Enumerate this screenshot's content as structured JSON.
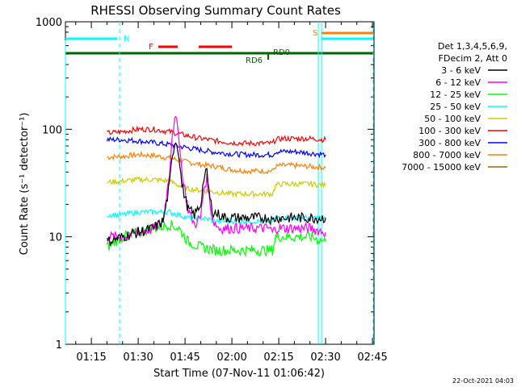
{
  "chart_data": {
    "type": "line",
    "title": "RHESSI Observing Summary Count Rates",
    "xlabel": "Start Time (07-Nov-11 01:06:42)",
    "ylabel": "Count Rate (s⁻¹ detector⁻¹)",
    "yscale": "log",
    "ylim": [
      1,
      1000
    ],
    "xlim_minutes_utc": [
      66.7,
      165.5
    ],
    "x_tick_labels": [
      "01:15",
      "01:30",
      "01:45",
      "02:00",
      "02:15",
      "02:30",
      "02:45"
    ],
    "x_tick_minutes": [
      75,
      90,
      105,
      120,
      135,
      150,
      165
    ],
    "y_tick_labels": [
      "1",
      "10",
      "100",
      "1000"
    ],
    "y_tick_values": [
      1,
      10,
      100,
      1000
    ],
    "legend": {
      "header_line1": "Det 1,3,4,5,6,9,",
      "header_line2": "FDecim 2, Att 0",
      "placement": "right"
    },
    "series": [
      {
        "name": "3 - 6 keV",
        "color": "#000000",
        "x": [
          80,
          85,
          90,
          95,
          98,
          100,
          101,
          102,
          103,
          104,
          106,
          108,
          110,
          111,
          112,
          113,
          114,
          116,
          118,
          120,
          124,
          128,
          132,
          133,
          134,
          136,
          140,
          145,
          150
        ],
        "y": [
          9,
          10,
          11,
          12,
          14,
          30,
          60,
          80,
          60,
          30,
          18,
          16,
          20,
          35,
          40,
          22,
          17,
          16,
          15,
          15,
          15,
          15,
          15,
          14,
          15,
          15,
          15,
          15,
          15
        ]
      },
      {
        "name": "6 - 12 keV",
        "color": "#ff00ff",
        "x": [
          80,
          85,
          90,
          95,
          98,
          100,
          101,
          102,
          103,
          104,
          106,
          108,
          110,
          111,
          112,
          113,
          114,
          116,
          120,
          124,
          128,
          132,
          133,
          134,
          136,
          140,
          145,
          150
        ],
        "y": [
          10,
          10,
          11,
          12,
          14,
          40,
          100,
          125,
          90,
          40,
          18,
          13,
          15,
          28,
          35,
          20,
          14,
          12,
          12,
          12,
          12,
          12,
          11,
          12,
          12,
          12,
          12,
          11
        ]
      },
      {
        "name": "12 - 25 keV",
        "color": "#00ff00",
        "x": [
          80,
          85,
          90,
          95,
          100,
          103,
          106,
          110,
          115,
          120,
          125,
          130,
          133,
          134,
          136,
          140,
          145,
          150
        ],
        "y": [
          8,
          10,
          11,
          12,
          13,
          12,
          9,
          8,
          7.5,
          7.5,
          7.5,
          7.5,
          7.5,
          10,
          10,
          10,
          10,
          9
        ]
      },
      {
        "name": "25 - 50 keV",
        "color": "#00ffff",
        "x": [
          80,
          85,
          90,
          95,
          100,
          103,
          106,
          110,
          115,
          120,
          125,
          130,
          133,
          134,
          136,
          140,
          145,
          150
        ],
        "y": [
          16,
          16,
          17,
          17,
          17,
          16,
          15,
          15,
          14,
          14,
          14,
          14,
          14,
          15,
          15,
          15,
          15,
          15
        ]
      },
      {
        "name": "50 - 100 keV",
        "color": "#cccc00",
        "x": [
          80,
          85,
          90,
          95,
          100,
          103,
          106,
          110,
          115,
          120,
          125,
          130,
          133,
          134,
          136,
          140,
          145,
          150
        ],
        "y": [
          32,
          33,
          34,
          34,
          33,
          30,
          28,
          27,
          26,
          25,
          25,
          25,
          25,
          30,
          31,
          31,
          31,
          30
        ]
      },
      {
        "name": "100 - 300 keV",
        "color": "#ff0000",
        "x": [
          80,
          85,
          90,
          95,
          100,
          105,
          110,
          115,
          120,
          125,
          130,
          133,
          134,
          136,
          140,
          145,
          150
        ],
        "y": [
          92,
          95,
          100,
          100,
          95,
          88,
          82,
          78,
          75,
          74,
          74,
          74,
          80,
          82,
          82,
          82,
          80
        ]
      },
      {
        "name": "300 - 800 keV",
        "color": "#0000ff",
        "x": [
          80,
          85,
          90,
          95,
          100,
          105,
          110,
          115,
          120,
          125,
          130,
          133,
          134,
          136,
          140,
          145,
          150
        ],
        "y": [
          80,
          80,
          78,
          75,
          72,
          68,
          64,
          61,
          59,
          58,
          58,
          58,
          62,
          62,
          62,
          60,
          58
        ]
      },
      {
        "name": "800 - 7000 keV",
        "color": "#ff8000",
        "x": [
          80,
          85,
          90,
          95,
          100,
          105,
          110,
          115,
          120,
          125,
          130,
          133,
          134,
          136,
          140,
          145,
          150
        ],
        "y": [
          55,
          56,
          58,
          57,
          54,
          50,
          47,
          45,
          42,
          41,
          41,
          41,
          45,
          46,
          46,
          45,
          44
        ]
      },
      {
        "name": "7000 - 15000 keV",
        "color": "#996600",
        "x": [
          80,
          150
        ],
        "y": [
          null,
          null
        ]
      }
    ],
    "annotations": {
      "attenuator_label": "N",
      "flare_label": "F",
      "saa_label": "S",
      "rd0_label": "RD0",
      "rd6_label": "RD6",
      "timestamp": "22-Oct-2021 04:03"
    }
  }
}
